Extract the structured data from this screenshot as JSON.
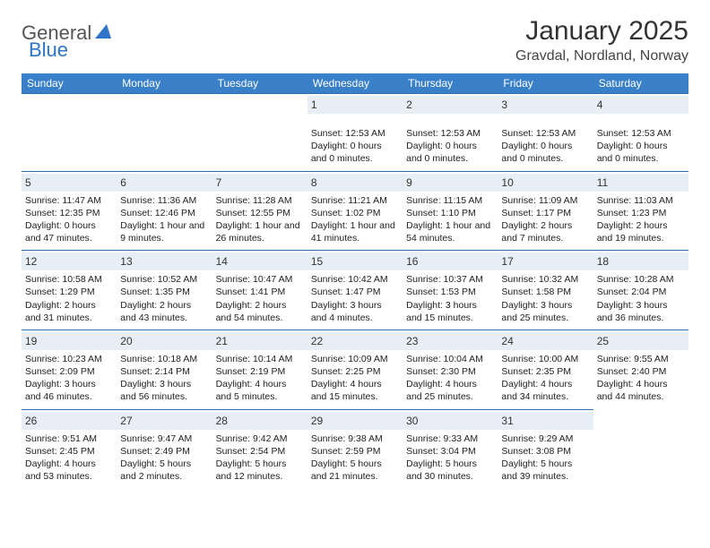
{
  "brand": {
    "part1": "General",
    "part2": "Blue",
    "tri_color": "#2e75c9"
  },
  "title": "January 2025",
  "location": "Gravdal, Nordland, Norway",
  "header_bg": "#3a80c8",
  "header_text_color": "#ffffff",
  "daynum_bg": "#e7eef5",
  "cell_border": "#2f6fb0",
  "weekdays": [
    "Sunday",
    "Monday",
    "Tuesday",
    "Wednesday",
    "Thursday",
    "Friday",
    "Saturday"
  ],
  "weeks": [
    [
      null,
      null,
      null,
      {
        "n": "1",
        "lines": [
          "Sunset: 12:53 AM",
          "Daylight: 0 hours",
          "and 0 minutes."
        ]
      },
      {
        "n": "2",
        "lines": [
          "Sunset: 12:53 AM",
          "Daylight: 0 hours",
          "and 0 minutes."
        ]
      },
      {
        "n": "3",
        "lines": [
          "Sunset: 12:53 AM",
          "Daylight: 0 hours",
          "and 0 minutes."
        ]
      },
      {
        "n": "4",
        "lines": [
          "Sunset: 12:53 AM",
          "Daylight: 0 hours",
          "and 0 minutes."
        ]
      }
    ],
    [
      {
        "n": "5",
        "lines": [
          "Sunrise: 11:47 AM",
          "Sunset: 12:35 PM",
          "Daylight: 0 hours",
          "and 47 minutes."
        ]
      },
      {
        "n": "6",
        "lines": [
          "Sunrise: 11:36 AM",
          "Sunset: 12:46 PM",
          "Daylight: 1 hour and",
          "9 minutes."
        ]
      },
      {
        "n": "7",
        "lines": [
          "Sunrise: 11:28 AM",
          "Sunset: 12:55 PM",
          "Daylight: 1 hour and",
          "26 minutes."
        ]
      },
      {
        "n": "8",
        "lines": [
          "Sunrise: 11:21 AM",
          "Sunset: 1:02 PM",
          "Daylight: 1 hour and",
          "41 minutes."
        ]
      },
      {
        "n": "9",
        "lines": [
          "Sunrise: 11:15 AM",
          "Sunset: 1:10 PM",
          "Daylight: 1 hour and",
          "54 minutes."
        ]
      },
      {
        "n": "10",
        "lines": [
          "Sunrise: 11:09 AM",
          "Sunset: 1:17 PM",
          "Daylight: 2 hours",
          "and 7 minutes."
        ]
      },
      {
        "n": "11",
        "lines": [
          "Sunrise: 11:03 AM",
          "Sunset: 1:23 PM",
          "Daylight: 2 hours",
          "and 19 minutes."
        ]
      }
    ],
    [
      {
        "n": "12",
        "lines": [
          "Sunrise: 10:58 AM",
          "Sunset: 1:29 PM",
          "Daylight: 2 hours",
          "and 31 minutes."
        ]
      },
      {
        "n": "13",
        "lines": [
          "Sunrise: 10:52 AM",
          "Sunset: 1:35 PM",
          "Daylight: 2 hours",
          "and 43 minutes."
        ]
      },
      {
        "n": "14",
        "lines": [
          "Sunrise: 10:47 AM",
          "Sunset: 1:41 PM",
          "Daylight: 2 hours",
          "and 54 minutes."
        ]
      },
      {
        "n": "15",
        "lines": [
          "Sunrise: 10:42 AM",
          "Sunset: 1:47 PM",
          "Daylight: 3 hours",
          "and 4 minutes."
        ]
      },
      {
        "n": "16",
        "lines": [
          "Sunrise: 10:37 AM",
          "Sunset: 1:53 PM",
          "Daylight: 3 hours",
          "and 15 minutes."
        ]
      },
      {
        "n": "17",
        "lines": [
          "Sunrise: 10:32 AM",
          "Sunset: 1:58 PM",
          "Daylight: 3 hours",
          "and 25 minutes."
        ]
      },
      {
        "n": "18",
        "lines": [
          "Sunrise: 10:28 AM",
          "Sunset: 2:04 PM",
          "Daylight: 3 hours",
          "and 36 minutes."
        ]
      }
    ],
    [
      {
        "n": "19",
        "lines": [
          "Sunrise: 10:23 AM",
          "Sunset: 2:09 PM",
          "Daylight: 3 hours",
          "and 46 minutes."
        ]
      },
      {
        "n": "20",
        "lines": [
          "Sunrise: 10:18 AM",
          "Sunset: 2:14 PM",
          "Daylight: 3 hours",
          "and 56 minutes."
        ]
      },
      {
        "n": "21",
        "lines": [
          "Sunrise: 10:14 AM",
          "Sunset: 2:19 PM",
          "Daylight: 4 hours",
          "and 5 minutes."
        ]
      },
      {
        "n": "22",
        "lines": [
          "Sunrise: 10:09 AM",
          "Sunset: 2:25 PM",
          "Daylight: 4 hours",
          "and 15 minutes."
        ]
      },
      {
        "n": "23",
        "lines": [
          "Sunrise: 10:04 AM",
          "Sunset: 2:30 PM",
          "Daylight: 4 hours",
          "and 25 minutes."
        ]
      },
      {
        "n": "24",
        "lines": [
          "Sunrise: 10:00 AM",
          "Sunset: 2:35 PM",
          "Daylight: 4 hours",
          "and 34 minutes."
        ]
      },
      {
        "n": "25",
        "lines": [
          "Sunrise: 9:55 AM",
          "Sunset: 2:40 PM",
          "Daylight: 4 hours",
          "and 44 minutes."
        ]
      }
    ],
    [
      {
        "n": "26",
        "lines": [
          "Sunrise: 9:51 AM",
          "Sunset: 2:45 PM",
          "Daylight: 4 hours",
          "and 53 minutes."
        ]
      },
      {
        "n": "27",
        "lines": [
          "Sunrise: 9:47 AM",
          "Sunset: 2:49 PM",
          "Daylight: 5 hours",
          "and 2 minutes."
        ]
      },
      {
        "n": "28",
        "lines": [
          "Sunrise: 9:42 AM",
          "Sunset: 2:54 PM",
          "Daylight: 5 hours",
          "and 12 minutes."
        ]
      },
      {
        "n": "29",
        "lines": [
          "Sunrise: 9:38 AM",
          "Sunset: 2:59 PM",
          "Daylight: 5 hours",
          "and 21 minutes."
        ]
      },
      {
        "n": "30",
        "lines": [
          "Sunrise: 9:33 AM",
          "Sunset: 3:04 PM",
          "Daylight: 5 hours",
          "and 30 minutes."
        ]
      },
      {
        "n": "31",
        "lines": [
          "Sunrise: 9:29 AM",
          "Sunset: 3:08 PM",
          "Daylight: 5 hours",
          "and 39 minutes."
        ]
      },
      null
    ]
  ]
}
